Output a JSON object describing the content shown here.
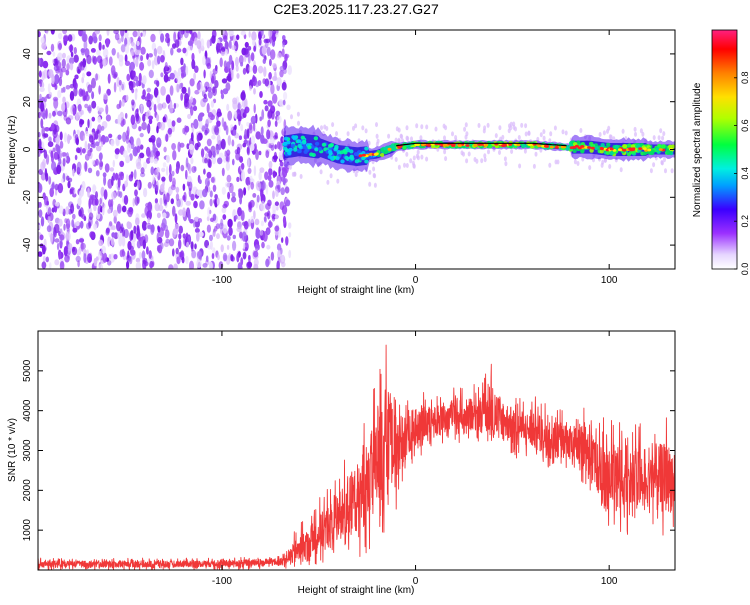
{
  "page": {
    "title": "C2E3.2025.117.23.27.G27"
  },
  "colors": {
    "noise_purple": "#8a2cf0",
    "noise_light": "#d9b9fb",
    "ridge_line": "#000000",
    "snr_red": "#f03838",
    "axis": "#000000"
  },
  "chart_data": [
    {
      "type": "heatmap",
      "title": "C2E3.2025.117.23.27.G27",
      "xlabel": "Height of straight line (km)",
      "ylabel": "Frequency (Hz)",
      "xlim": [
        -195,
        134
      ],
      "ylim": [
        -50,
        50
      ],
      "xticks": [
        -100,
        0,
        100
      ],
      "yticks": [
        -40,
        -20,
        0,
        20,
        40
      ],
      "grid": false,
      "noise_region_x": [
        -195,
        -68
      ],
      "ridge": {
        "x": [
          -68,
          -60,
          -50,
          -40,
          -30,
          -20,
          -10,
          0,
          20,
          40,
          60,
          78,
          90,
          100,
          110,
          120,
          134
        ],
        "freq": [
          1,
          2,
          1,
          -2,
          -3,
          -2,
          1,
          2,
          2,
          2,
          2,
          1,
          1,
          0,
          0,
          0,
          0
        ]
      },
      "colorbar": {
        "label": "Normalized spectral amplitude",
        "range": [
          0.0,
          1.0
        ],
        "ticks": [
          0.0,
          0.2,
          0.4,
          0.6,
          0.8
        ],
        "tick_labels": [
          "0.0",
          "0.2",
          "0.4",
          "0.6",
          "0.8"
        ],
        "colormap": "rainbow (purple to red)"
      }
    },
    {
      "type": "line",
      "xlabel": "Height of straight line (km)",
      "ylabel": "SNR (10 * v/v)",
      "xlim": [
        -195,
        134
      ],
      "ylim": [
        0,
        6000
      ],
      "xticks": [
        -100,
        0,
        100
      ],
      "yticks": [
        1000,
        2000,
        3000,
        4000,
        5000
      ],
      "grid": false,
      "series": [
        {
          "envelope_x": [
            -195,
            -150,
            -100,
            -70,
            -60,
            -50,
            -40,
            -30,
            -20,
            -15,
            -10,
            0,
            10,
            20,
            30,
            40,
            50,
            60,
            70,
            80,
            90,
            96,
            100,
            110,
            120,
            134
          ],
          "envelope_min": [
            0,
            0,
            0,
            20,
            50,
            150,
            200,
            300,
            500,
            900,
            1500,
            2800,
            3000,
            3200,
            3200,
            3000,
            2800,
            2800,
            2500,
            2500,
            2000,
            1200,
            900,
            800,
            800,
            800
          ],
          "envelope_max": [
            300,
            300,
            300,
            350,
            1200,
            1800,
            2500,
            3500,
            4800,
            5900,
            4200,
            4500,
            4400,
            4600,
            4700,
            5300,
            4400,
            4400,
            4200,
            4000,
            4100,
            4000,
            3900,
            3800,
            4000,
            3900
          ],
          "envelope_mid": [
            150,
            150,
            160,
            200,
            500,
            900,
            1300,
            1800,
            2600,
            3300,
            3000,
            3700,
            3700,
            3900,
            3900,
            4000,
            3600,
            3500,
            3300,
            3200,
            3000,
            2300,
            2200,
            2200,
            2300,
            2300
          ]
        }
      ]
    }
  ]
}
